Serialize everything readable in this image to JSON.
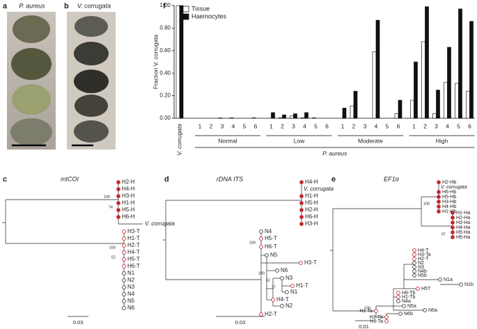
{
  "panels": {
    "a": {
      "label": "a",
      "title": "P. aureus"
    },
    "b": {
      "label": "b",
      "title": "V. corrugata"
    },
    "c": {
      "label": "c",
      "title": "mtCOI",
      "leaves": [
        "H2-H",
        "H4-H",
        "H3-H",
        "H1-H",
        "H5-H",
        "H6-H",
        "V. corrugata",
        "H3-T",
        "H1-T",
        "H2-T",
        "H4-T",
        "H5-T",
        "H6-T",
        "N1",
        "N2",
        "N3",
        "N4",
        "N5",
        "N6"
      ],
      "support": [
        100,
        74,
        100,
        52
      ],
      "scale": "0.03"
    },
    "d": {
      "label": "d",
      "title": "rDNA ITS",
      "leaves": [
        "H4-H",
        "V. corrugata",
        "H1-H",
        "H5-H",
        "H2-H",
        "H6-H",
        "H3-H",
        "N4",
        "H5-T",
        "H6-T",
        "N5",
        "H3-T",
        "N6",
        "N3",
        "H1-T",
        "N1",
        "H4-T",
        "N2",
        "H2-T"
      ],
      "support": [
        100,
        100,
        51,
        77,
        97
      ],
      "scale": "0.03"
    },
    "e": {
      "label": "e",
      "title": "EF1α",
      "leaves": [
        "H2-Hb",
        "V. corrugata",
        "H6-Hb",
        "H5-Hb",
        "H3-Hb",
        "H4-Hb",
        "H1-Hb",
        "H1-Ha",
        "H2-Ha",
        "H3-Ha",
        "H4-Ha",
        "H5-Ha",
        "H6-Ha",
        "H4-T",
        "H3-Ta",
        "H2-T",
        "N2",
        "N3",
        "N4b",
        "N5b",
        "N1a",
        "N1b",
        "H5T",
        "H6-Tb",
        "H1-Tb",
        "N4a",
        "N5a",
        "N6a",
        "H1-Ta",
        "N6b",
        "H3-Tb",
        "H6-Ta"
      ],
      "support": [
        100,
        97,
        100
      ],
      "scale": "0.01"
    }
  },
  "chart_data": {
    "type": "bar",
    "panel_label": "f",
    "categories": [
      "V. corrugata",
      "1",
      "2",
      "3",
      "4",
      "5",
      "6",
      "1",
      "2",
      "3",
      "4",
      "5",
      "6",
      "1",
      "2",
      "3",
      "4",
      "5",
      "6",
      "1",
      "2",
      "3",
      "4",
      "5",
      "6"
    ],
    "groups": [
      "Normal",
      "Low",
      "Moderate",
      "High"
    ],
    "group_title": "P. aureus",
    "ylabel": "Fraction V. corrugata",
    "ylim": [
      0,
      1
    ],
    "yticks": [
      {
        "value": 0,
        "label": "0.00"
      },
      {
        "value": 0.2,
        "label": "0.20"
      },
      {
        "value": 0.4,
        "label": "0.40"
      },
      {
        "value": 0.6,
        "label": "0.60"
      },
      {
        "value": 0.8,
        "label": "0.80"
      },
      {
        "value": 1,
        "label": "1.00"
      }
    ],
    "legend": "upper-left",
    "series": [
      {
        "name": "Tissue",
        "color": "#ffffff",
        "values": [
          1.0,
          0,
          0,
          0.003,
          0.005,
          0,
          0.005,
          0,
          0.005,
          0.02,
          0.005,
          0.005,
          0,
          0,
          0.11,
          0,
          0.59,
          0,
          0.04,
          0.16,
          0.68,
          0.04,
          0.32,
          0.31,
          0.24
        ]
      },
      {
        "name": "Haemocytes",
        "color": "#111111",
        "values": [
          1.0,
          0,
          0,
          0,
          0,
          0,
          0,
          0.05,
          0.03,
          0.04,
          0.05,
          0,
          0,
          0.09,
          0.24,
          0,
          0.87,
          0,
          0.16,
          0.5,
          0.99,
          0.25,
          0.63,
          0.97,
          0.86
        ]
      }
    ]
  }
}
